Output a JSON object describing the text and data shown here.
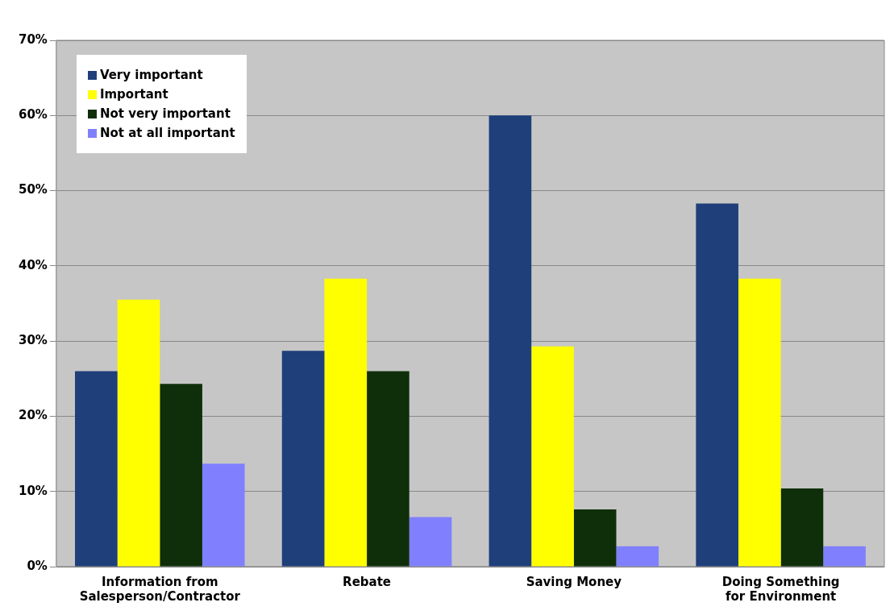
{
  "chart_data": {
    "type": "bar",
    "categories": [
      "Information from Salesperson/Contractor",
      "Rebate",
      "Saving Money",
      "Doing Something for Environment"
    ],
    "series": [
      {
        "name": "Very important",
        "color": "#1f3f7a",
        "values": [
          26,
          28.7,
          60,
          48.3
        ]
      },
      {
        "name": "Important",
        "color": "#ffff00",
        "values": [
          35.5,
          38.3,
          29.3,
          38.3
        ]
      },
      {
        "name": "Not very important",
        "color": "#0f2f0a",
        "values": [
          24.3,
          26,
          7.6,
          10.4
        ]
      },
      {
        "name": "Not at all important",
        "color": "#8080ff",
        "values": [
          13.7,
          6.6,
          2.7,
          2.7
        ]
      }
    ],
    "ylim": [
      0,
      70
    ],
    "yticks": [
      {
        "value": 0,
        "label": "0%"
      },
      {
        "value": 10,
        "label": "10%"
      },
      {
        "value": 20,
        "label": "20%"
      },
      {
        "value": 30,
        "label": "30%"
      },
      {
        "value": 40,
        "label": "40%"
      },
      {
        "value": 50,
        "label": "50%"
      },
      {
        "value": 60,
        "label": "60%"
      },
      {
        "value": 70,
        "label": "70%"
      }
    ],
    "grid": "y",
    "legend": "top left"
  }
}
